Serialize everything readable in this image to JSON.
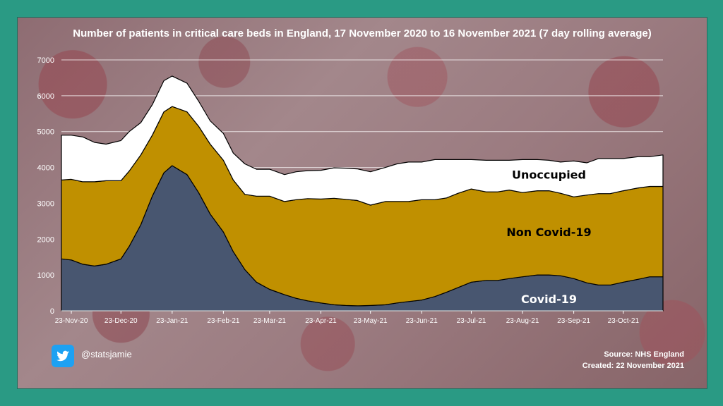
{
  "title": "Number of patients in critical care beds in England, 17 November 2020 to 16 November 2021 (7 day rolling  average)",
  "handle": "@statsjamie",
  "source": "Source: NHS England",
  "created": "Created: 22 November 2021",
  "colors": {
    "covid": "#485670",
    "non_covid": "#c09000",
    "unoccupied": "#ffffff",
    "label_dark": "#000000",
    "label_light": "#ffffff"
  },
  "chart_data": {
    "type": "area",
    "stacked": true,
    "ylim": [
      0,
      7000
    ],
    "yticks": [
      0,
      1000,
      2000,
      3000,
      4000,
      5000,
      6000,
      7000
    ],
    "grid": true,
    "x": [
      "17-Nov-20",
      "23-Nov-20",
      "30-Nov-20",
      "07-Dec-20",
      "14-Dec-20",
      "23-Dec-20",
      "28-Dec-20",
      "04-Jan-21",
      "11-Jan-21",
      "18-Jan-21",
      "23-Jan-21",
      "01-Feb-21",
      "08-Feb-21",
      "15-Feb-21",
      "23-Feb-21",
      "01-Mar-21",
      "08-Mar-21",
      "15-Mar-21",
      "23-Mar-21",
      "01-Apr-21",
      "08-Apr-21",
      "15-Apr-21",
      "23-Apr-21",
      "01-May-21",
      "08-May-21",
      "15-May-21",
      "23-May-21",
      "01-Jun-21",
      "08-Jun-21",
      "15-Jun-21",
      "23-Jun-21",
      "01-Jul-21",
      "08-Jul-21",
      "15-Jul-21",
      "23-Jul-21",
      "01-Aug-21",
      "08-Aug-21",
      "15-Aug-21",
      "23-Aug-21",
      "01-Sep-21",
      "08-Sep-21",
      "15-Sep-21",
      "23-Sep-21",
      "01-Oct-21",
      "08-Oct-21",
      "15-Oct-21",
      "23-Oct-21",
      "01-Nov-21",
      "08-Nov-21",
      "16-Nov-21"
    ],
    "xtick_labels": [
      "23-Nov-20",
      "23-Dec-20",
      "23-Jan-21",
      "23-Feb-21",
      "23-Mar-21",
      "23-Apr-21",
      "23-May-21",
      "23-Jun-21",
      "23-Jul-21",
      "23-Aug-21",
      "23-Sep-21",
      "23-Oct-21"
    ],
    "series": [
      {
        "name": "Covid-19",
        "color_key": "covid",
        "values": [
          1450,
          1420,
          1300,
          1250,
          1300,
          1450,
          1800,
          2400,
          3200,
          3850,
          4050,
          3800,
          3300,
          2700,
          2200,
          1650,
          1150,
          800,
          600,
          450,
          350,
          280,
          220,
          170,
          150,
          140,
          150,
          170,
          220,
          260,
          300,
          400,
          520,
          650,
          800,
          850,
          850,
          900,
          950,
          1000,
          1000,
          980,
          900,
          780,
          720,
          720,
          800,
          880,
          950,
          950
        ]
      },
      {
        "name": "Non Covid-19",
        "color_key": "non_covid",
        "values": [
          2200,
          2250,
          2300,
          2350,
          2330,
          2180,
          2100,
          1950,
          1700,
          1700,
          1650,
          1750,
          1850,
          1950,
          2000,
          2000,
          2100,
          2400,
          2600,
          2600,
          2750,
          2850,
          2900,
          2970,
          2960,
          2940,
          2800,
          2880,
          2830,
          2790,
          2800,
          2700,
          2630,
          2630,
          2600,
          2470,
          2470,
          2470,
          2350,
          2350,
          2350,
          2300,
          2280,
          2450,
          2550,
          2550,
          2550,
          2550,
          2520,
          2520
        ]
      },
      {
        "name": "Unoccupied",
        "color_key": "unoccupied",
        "values": [
          1250,
          1230,
          1250,
          1100,
          1020,
          1120,
          1100,
          900,
          850,
          870,
          850,
          800,
          700,
          650,
          750,
          750,
          850,
          750,
          750,
          750,
          780,
          780,
          800,
          850,
          870,
          880,
          930,
          950,
          1050,
          1100,
          1050,
          1120,
          1070,
          940,
          820,
          880,
          880,
          830,
          920,
          870,
          850,
          870,
          1000,
          900,
          980,
          980,
          900,
          870,
          830,
          880
        ]
      }
    ],
    "annotations": [
      {
        "text": "Unoccupied",
        "x": "08-Sep-21",
        "y": 3800,
        "color_key": "label_dark"
      },
      {
        "text": "Non Covid-19",
        "x": "08-Sep-21",
        "y": 2200,
        "color_key": "label_dark"
      },
      {
        "text": "Covid-19",
        "x": "08-Sep-21",
        "y": 330,
        "color_key": "label_light"
      }
    ]
  }
}
